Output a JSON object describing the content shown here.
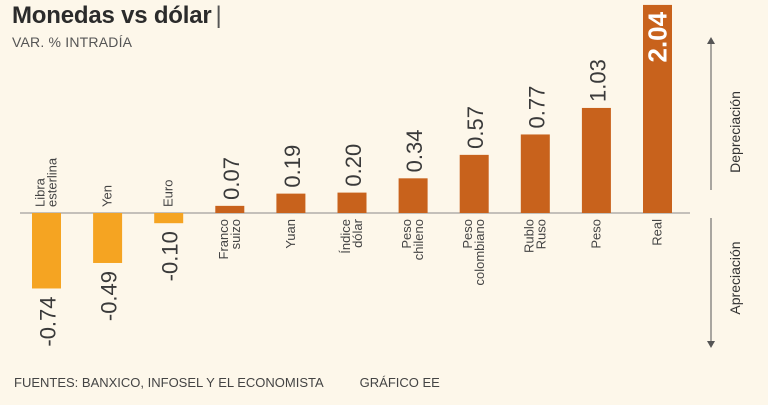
{
  "header": {
    "title": "Monedas vs dólar",
    "title_separator": "|",
    "subtitle": "VAR. % INTRADÍA"
  },
  "footer": {
    "sources": "FUENTES: BANXICO, INFOSEL Y EL ECONOMISTA",
    "credit": "GRÁFICO EE"
  },
  "chart_data": {
    "type": "bar",
    "title": "Monedas vs dólar",
    "subtitle": "VAR. % INTRADÍA",
    "categories": [
      [
        "Libra",
        "esterlina"
      ],
      [
        "Yen"
      ],
      [
        "Euro"
      ],
      [
        "Franco",
        "suizo"
      ],
      [
        "Yuan"
      ],
      [
        "Índice",
        "dólar"
      ],
      [
        "Peso",
        "chileno"
      ],
      [
        "Peso",
        "colombiano"
      ],
      [
        "Rublo",
        "Ruso"
      ],
      [
        "Peso"
      ],
      [
        "Real"
      ]
    ],
    "values": [
      -0.74,
      -0.49,
      -0.1,
      0.07,
      0.19,
      0.2,
      0.34,
      0.57,
      0.77,
      1.03,
      2.04
    ],
    "value_labels": [
      "-0.74",
      "-0.49",
      "-0.10",
      "0.07",
      "0.19",
      "0.20",
      "0.34",
      "0.57",
      "0.77",
      "1.03",
      "2.04"
    ],
    "axis_labels": {
      "positive": "Depreciación",
      "negative": "Apreciación"
    },
    "colors": {
      "negative": "#f5a422",
      "positive": "#c8621c",
      "highlight_label": "#ffffff"
    }
  }
}
